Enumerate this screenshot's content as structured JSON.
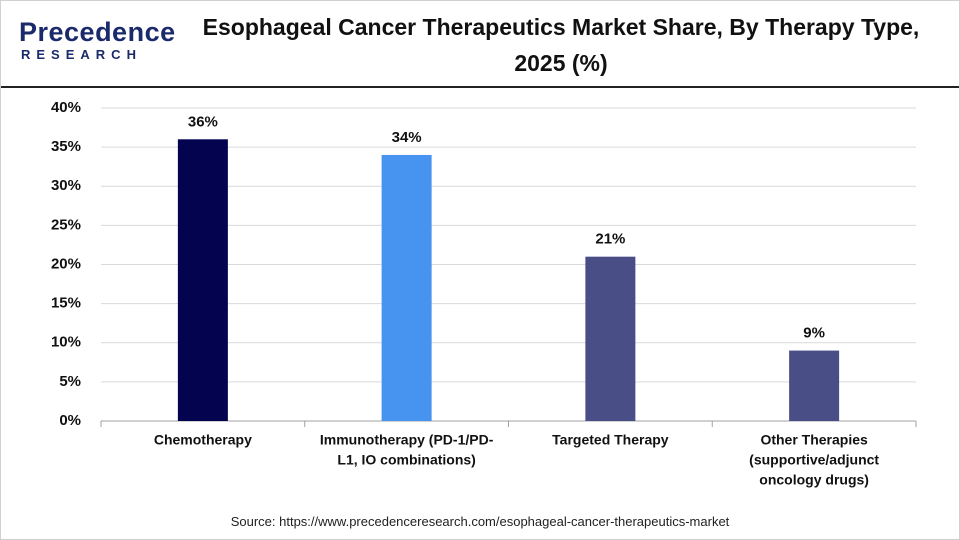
{
  "logo": {
    "name": "Precedence",
    "tagline": "RESEARCH"
  },
  "source": "Source: https://www.precedenceresearch.com/esophageal-cancer-therapeutics-market",
  "chart_data": {
    "type": "bar",
    "title": "Esophageal Cancer Therapeutics Market Share, By Therapy Type, 2025 (%)",
    "categories": [
      [
        "Chemotherapy"
      ],
      [
        "Immunotherapy (PD-1/PD-",
        "L1, IO combinations)"
      ],
      [
        "Targeted Therapy"
      ],
      [
        "Other Therapies",
        "(supportive/adjunct",
        "oncology drugs)"
      ]
    ],
    "values": [
      36,
      34,
      21,
      9
    ],
    "value_labels": [
      "36%",
      "34%",
      "21%",
      "9%"
    ],
    "colors": [
      "#03034f",
      "#4693f0",
      "#4a4e86",
      "#4a4e86"
    ],
    "ylim": [
      0,
      40
    ],
    "yticks": [
      {
        "value": 0,
        "label": "0%"
      },
      {
        "value": 5,
        "label": "5%"
      },
      {
        "value": 10,
        "label": "10%"
      },
      {
        "value": 15,
        "label": "15%"
      },
      {
        "value": 20,
        "label": "20%"
      },
      {
        "value": 25,
        "label": "25%"
      },
      {
        "value": 30,
        "label": "30%"
      },
      {
        "value": 35,
        "label": "35%"
      },
      {
        "value": 40,
        "label": "40%"
      }
    ],
    "grid": true
  }
}
